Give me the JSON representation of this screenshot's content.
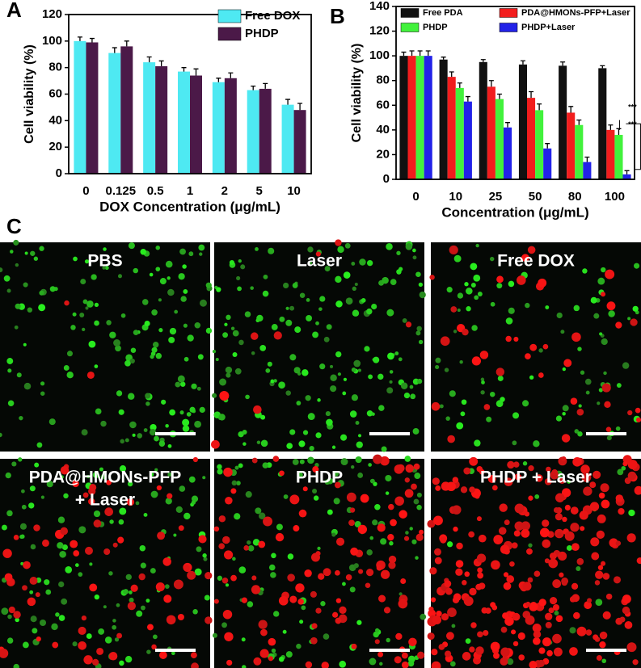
{
  "chart_data": [
    {
      "type": "bar",
      "panel_label": "A",
      "ylabel": "Cell viability (%)",
      "xlabel": "DOX Concentration (μg/mL)",
      "categories": [
        "0",
        "0.125",
        "0.5",
        "1",
        "2",
        "5",
        "10"
      ],
      "series": [
        {
          "name": "Free DOX",
          "color": "#4ee9f2",
          "values": [
            100,
            91,
            84,
            77,
            69,
            63,
            52
          ],
          "errors": [
            3,
            4,
            4,
            3,
            3,
            3,
            4
          ]
        },
        {
          "name": "PHDP",
          "color": "#4b1948",
          "values": [
            99,
            96,
            81,
            74,
            72,
            64,
            48
          ],
          "errors": [
            3,
            4,
            4,
            5,
            4,
            4,
            5
          ]
        }
      ],
      "ylim": [
        0,
        120
      ],
      "yticks": [
        0,
        20,
        40,
        60,
        80,
        100,
        120
      ],
      "legend": "upper right"
    },
    {
      "type": "bar",
      "panel_label": "B",
      "ylabel": "Cell viability (%)",
      "xlabel": "Concentration (μg/mL)",
      "categories": [
        "0",
        "10",
        "25",
        "50",
        "80",
        "100"
      ],
      "series": [
        {
          "name": "Free PDA",
          "color": "#111111",
          "values": [
            100,
            97,
            95,
            93,
            92,
            90
          ],
          "errors": [
            3,
            2,
            2,
            3,
            3,
            2
          ]
        },
        {
          "name": "PDA@HMONs-PFP+Laser",
          "color": "#f21d1d",
          "values": [
            100,
            83,
            75,
            66,
            54,
            40
          ],
          "errors": [
            4,
            4,
            5,
            5,
            5,
            4
          ]
        },
        {
          "name": "PHDP",
          "color": "#42f23c",
          "values": [
            100,
            74,
            65,
            56,
            44,
            36
          ],
          "errors": [
            4,
            4,
            4,
            5,
            4,
            5
          ]
        },
        {
          "name": "PHDP+Laser",
          "color": "#2222e8",
          "values": [
            100,
            63,
            42,
            25,
            14,
            4
          ],
          "errors": [
            4,
            4,
            4,
            4,
            4,
            3
          ]
        }
      ],
      "annotations": [
        "***",
        "***"
      ],
      "ylim": [
        0,
        140
      ],
      "yticks": [
        0,
        20,
        40,
        60,
        80,
        100,
        120,
        140
      ],
      "legend": "top"
    }
  ],
  "panel_c": {
    "label": "C",
    "images": [
      [
        "PBS"
      ],
      [
        "Laser"
      ],
      [
        "Free DOX"
      ],
      [
        "PDA@HMONs-PFP",
        "+ Laser"
      ],
      [
        "PHDP"
      ],
      [
        "PHDP + Laser"
      ]
    ]
  }
}
